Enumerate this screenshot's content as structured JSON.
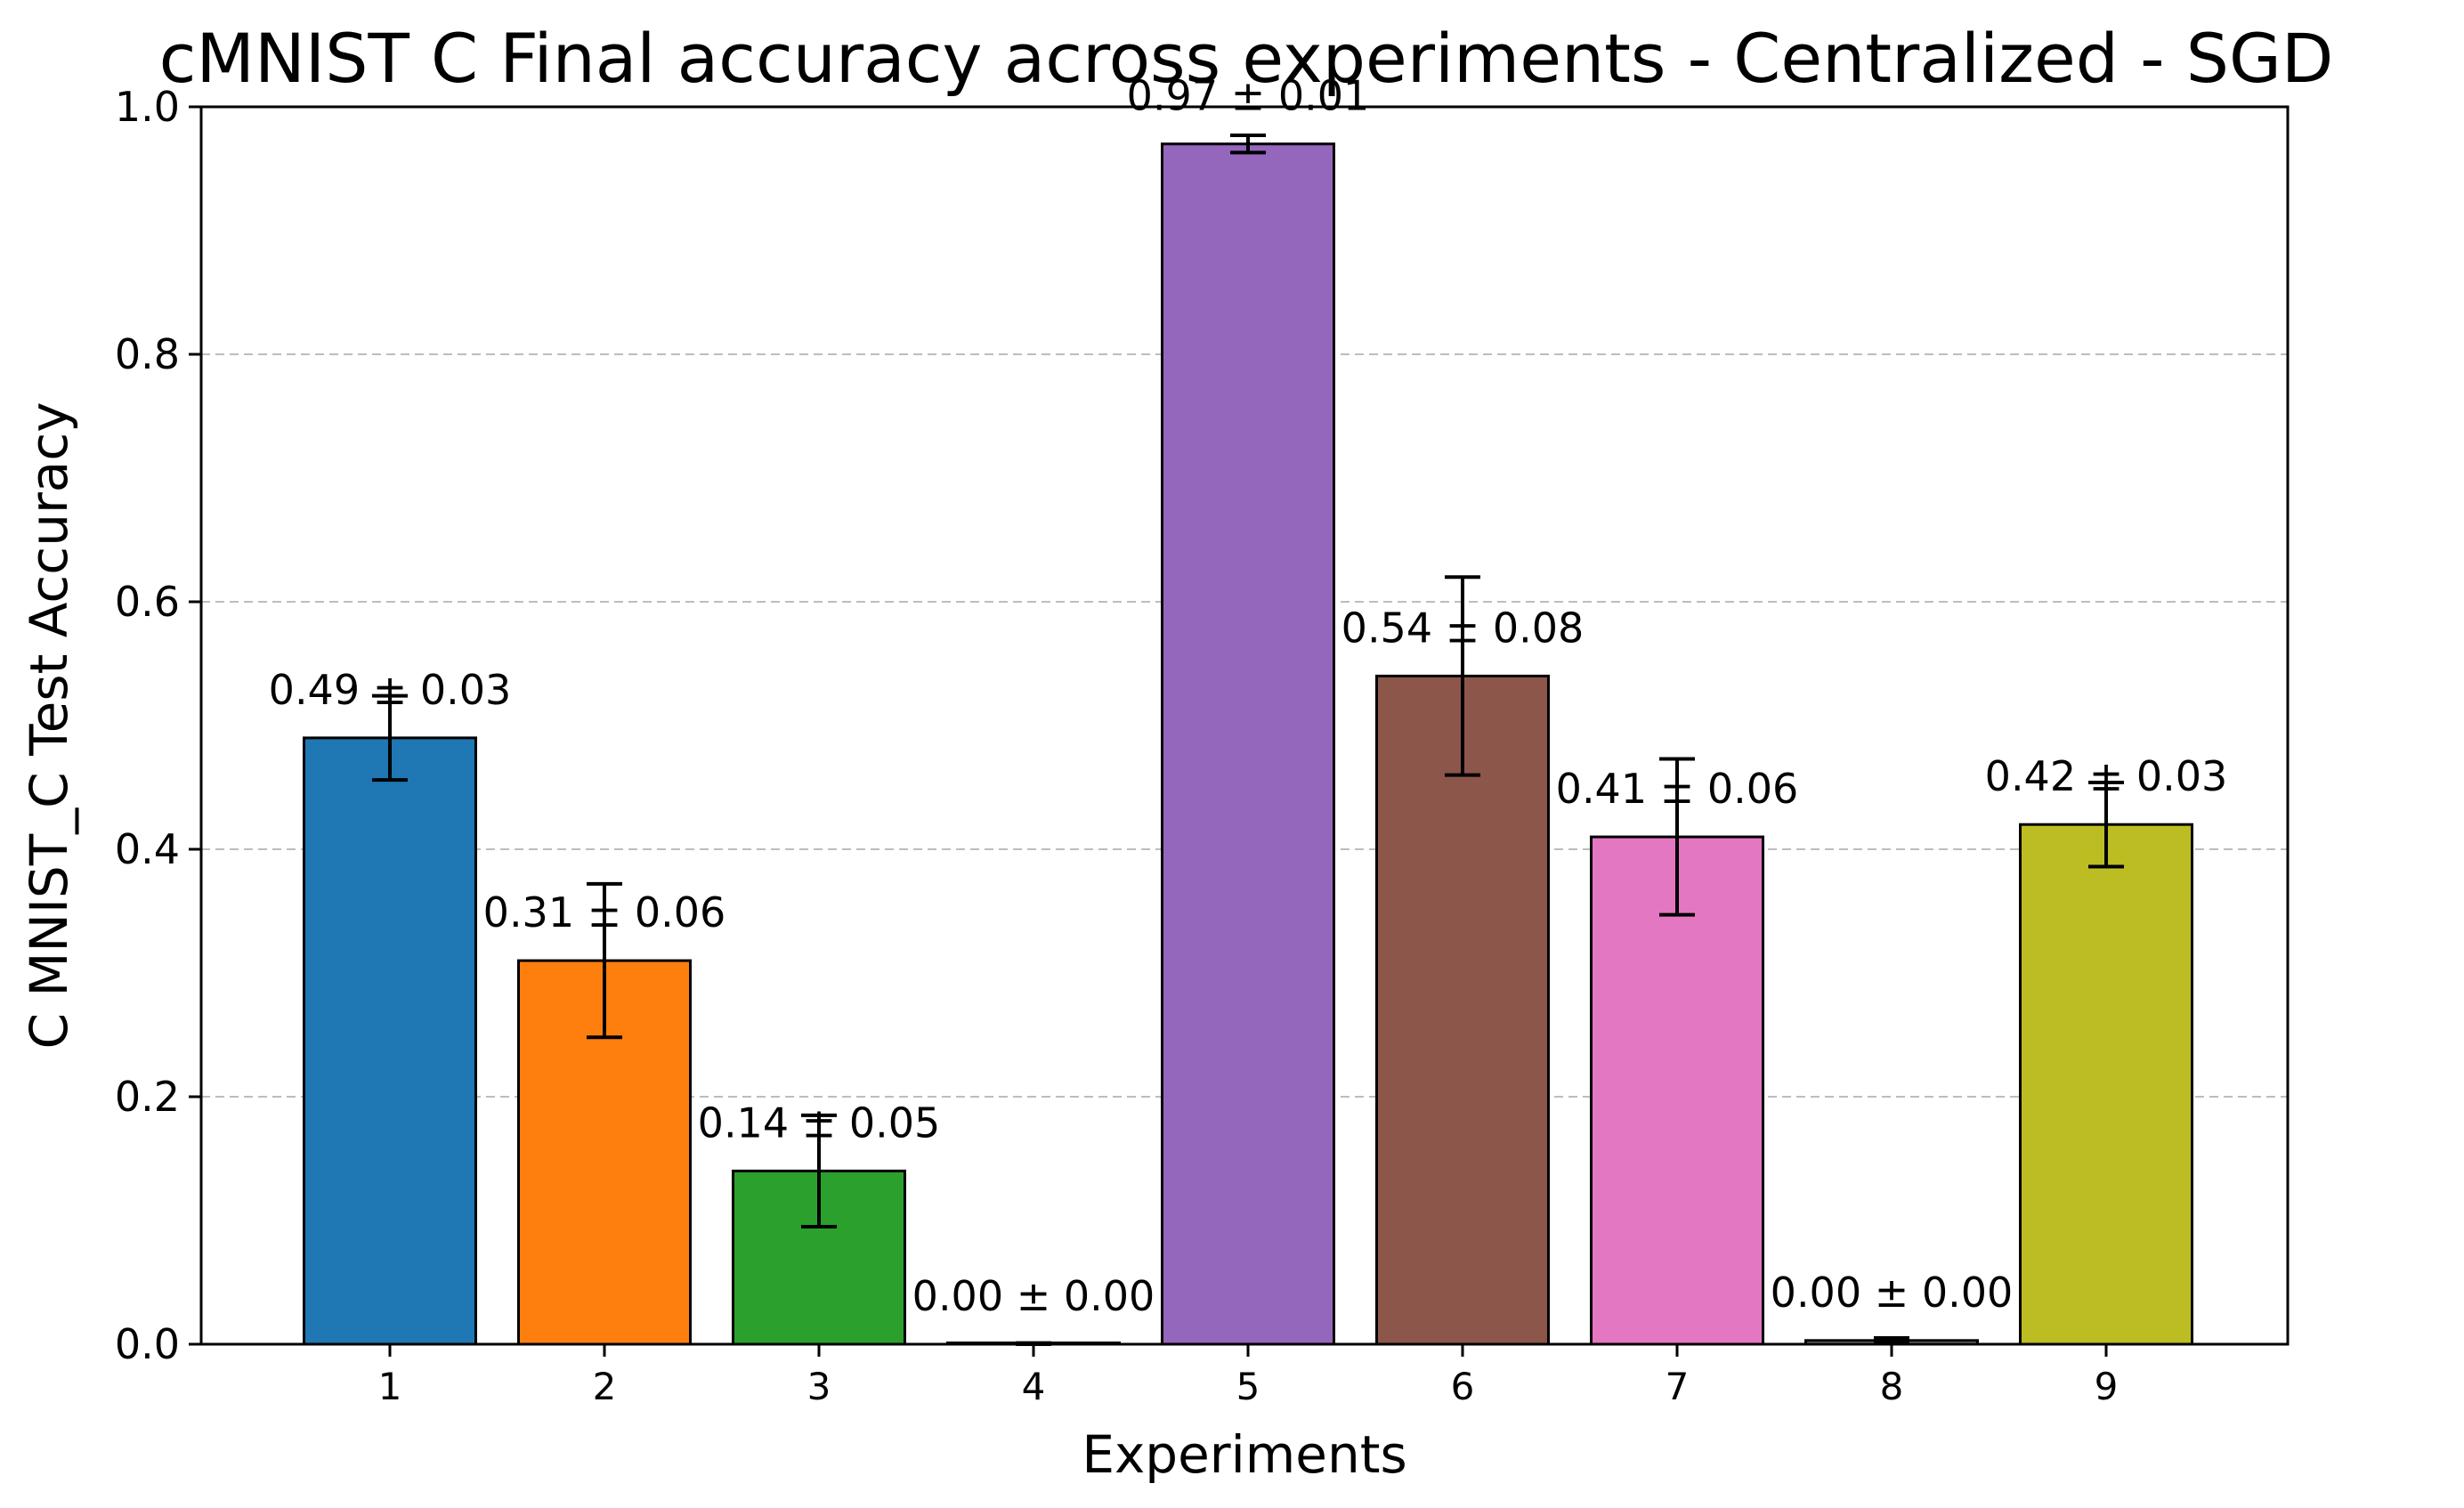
{
  "chart_data": {
    "type": "bar",
    "title": "cMNIST C Final accuracy across experiments - Centralized - SGD",
    "xlabel": "Experiments",
    "ylabel": "C MNIST_C Test Accuracy",
    "categories": [
      "1",
      "2",
      "3",
      "4",
      "5",
      "6",
      "7",
      "8",
      "9"
    ],
    "values": [
      0.49,
      0.31,
      0.14,
      0.0,
      0.97,
      0.54,
      0.41,
      0.003,
      0.42
    ],
    "errors": [
      0.034,
      0.062,
      0.045,
      0.001,
      0.007,
      0.08,
      0.063,
      0.002,
      0.034
    ],
    "data_labels": [
      "0.49 ± 0.03",
      "0.31 ± 0.06",
      "0.14 ± 0.05",
      "0.00 ± 0.00",
      "0.97 ± 0.01",
      "0.54 ± 0.08",
      "0.41 ± 0.06",
      "0.00 ± 0.00",
      "0.42 ± 0.03"
    ],
    "colors": [
      "#1f77b4",
      "#ff7f0e",
      "#2ca02c",
      "#d62728",
      "#9467bd",
      "#8c564b",
      "#e377c2",
      "#7f7f7f",
      "#bcbd22"
    ],
    "ylim": [
      0,
      1.0
    ],
    "yticks": [
      "0.0",
      "0.2",
      "0.4",
      "0.6",
      "0.8",
      "1.0"
    ],
    "grid": "y-dashed",
    "legend": "none"
  }
}
